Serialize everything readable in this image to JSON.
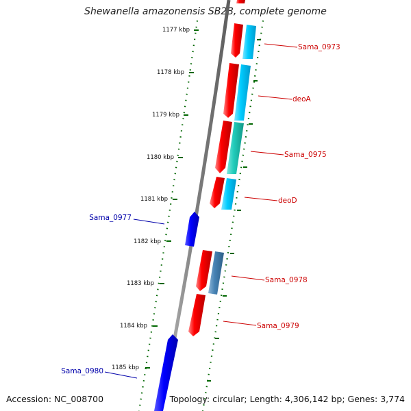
{
  "title": "Shewanella amazonensis SB2B, complete genome",
  "footer": {
    "accession": "Accession: NC_008700",
    "summary": "Topology: circular; Length: 4,306,142 bp; Genes: 3,774"
  },
  "ticks": [
    "1177 kbp",
    "1178 kbp",
    "1179 kbp",
    "1180 kbp",
    "1181 kbp",
    "1182 kbp",
    "1183 kbp",
    "1184 kbp",
    "1185 kbp"
  ],
  "genes": [
    {
      "name": "Sama_0973",
      "strand": "forward",
      "color": "#cc0000"
    },
    {
      "name": "deoA",
      "strand": "forward",
      "color": "#cc0000"
    },
    {
      "name": "Sama_0975",
      "strand": "forward",
      "color": "#cc0000"
    },
    {
      "name": "deoD",
      "strand": "forward",
      "color": "#cc0000"
    },
    {
      "name": "Sama_0977",
      "strand": "reverse",
      "color": "#0000aa"
    },
    {
      "name": "Sama_0978",
      "strand": "forward",
      "color": "#cc0000"
    },
    {
      "name": "Sama_0979",
      "strand": "forward",
      "color": "#cc0000"
    },
    {
      "name": "Sama_0980",
      "strand": "reverse",
      "color": "#0000aa"
    }
  ],
  "colors": {
    "backbone": "#808080",
    "forward_gene": "#ff0000",
    "reverse_gene": "#0000ff",
    "cog_cyan": "#00ccff",
    "cog_teal": "#22ccbb",
    "cog_steel": "#4682b4",
    "tick_green": "#006600",
    "label_red": "#cc0000",
    "label_blue": "#0000aa"
  }
}
